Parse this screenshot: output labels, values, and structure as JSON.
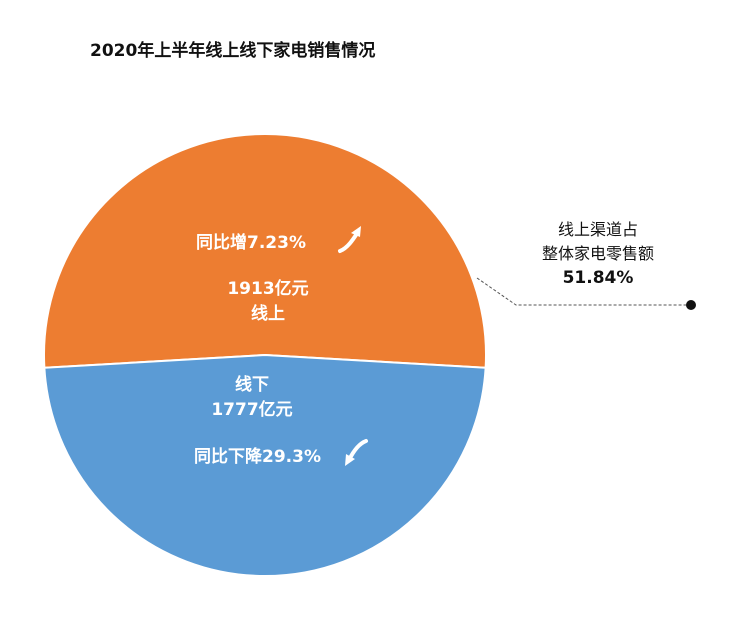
{
  "chart_data": {
    "type": "pie",
    "title": "2020年上半年线上线下家电销售情况",
    "unit": "亿元",
    "colors": {
      "online": "#ED7D31",
      "offline": "#5B9BD5"
    },
    "slices": [
      {
        "name": "线上",
        "value": 1913,
        "value_label": "1913亿元",
        "yoy_label": "同比增7.23%",
        "trend": "up"
      },
      {
        "name": "线下",
        "value": 1777,
        "value_label": "1777亿元",
        "yoy_label": "同比下降29.3%",
        "trend": "down"
      }
    ],
    "callout": {
      "line1": "线上渠道占",
      "line2": "整体家电零售额",
      "percent": "51.84%"
    }
  }
}
